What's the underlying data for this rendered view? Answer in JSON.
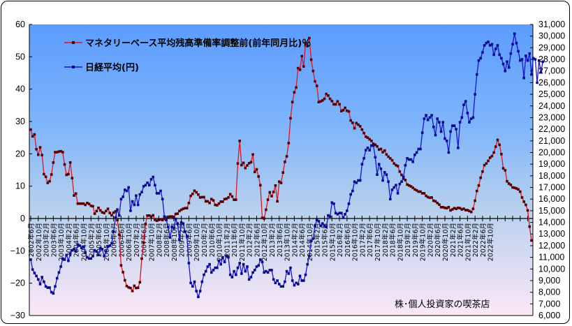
{
  "chart_data": {
    "type": "line",
    "title": "",
    "xlabel": "",
    "ylabel_left": "",
    "ylabel_right": "",
    "legend_position": "top-left inside plot",
    "grid": false,
    "credit": "株･個人投資家の喫茶店",
    "x_start": "2002年6月",
    "x_end": "2022年10月",
    "x_tick_labels": [
      "2002年6月",
      "2002年10月",
      "2003年2月",
      "2003年6月",
      "2003年10月",
      "2004年2月",
      "2004年6月",
      "2004年10月",
      "2005年2月",
      "2005年6月",
      "2005年10月",
      "2006年2月",
      "2006年6月",
      "2006年10月",
      "2007年2月",
      "2007年6月",
      "2007年10月",
      "2008年2月",
      "2008年6月",
      "2008年10月",
      "2009年2月",
      "2009年6月",
      "2009年10月",
      "2010年2月",
      "2010年6月",
      "2010年10月",
      "2011年2月",
      "2011年6月",
      "2011年10月",
      "2012年2月",
      "2012年6月",
      "2012年10月",
      "2013年2月",
      "2013年6月",
      "2013年10月",
      "2014年2月",
      "2014年6月",
      "2014年10月",
      "2015年2月",
      "2015年6月",
      "2015年10月",
      "2016年2月",
      "2016年6月",
      "2016年10月",
      "2017年2月",
      "2017年6月",
      "2017年10月",
      "2018年2月",
      "2018年6月",
      "2018年10月",
      "2019年2月",
      "2019年6月",
      "2019年10月",
      "2020年2月",
      "2020年6月",
      "2020年10月",
      "2021年2月",
      "2021年6月",
      "2021年10月",
      "2022年2月",
      "2022年6月",
      "2022年10月"
    ],
    "left_axis": {
      "min": -30,
      "max": 60,
      "step": 10,
      "ticks": [
        "60",
        "50",
        "40",
        "30",
        "20",
        "10",
        "0",
        "-10",
        "-20",
        "-30"
      ]
    },
    "right_axis": {
      "min": 6000,
      "max": 31000,
      "step": 1000,
      "ticks": [
        "31,000",
        "30,000",
        "29,000",
        "28,000",
        "27,000",
        "26,000",
        "25,000",
        "24,000",
        "23,000",
        "22,000",
        "21,000",
        "20,000",
        "19,000",
        "18,000",
        "17,000",
        "16,000",
        "15,000",
        "14,000",
        "13,000",
        "12,000",
        "11,000",
        "10,000",
        "9,000",
        "8,000",
        "7,000",
        "6,000"
      ]
    },
    "series": [
      {
        "name": "マネタリーベース平均残高準備率調整前(前年同月比)％",
        "axis": "left",
        "color": "#e0141e",
        "values": [
          27.5,
          25.4,
          26.0,
          21.4,
          19.7,
          22.0,
          19.6,
          13.7,
          12.9,
          11.0,
          11.5,
          13.6,
          17.3,
          20.5,
          20.5,
          20.7,
          20.8,
          20.5,
          16.7,
          13.5,
          13.7,
          17.3,
          12.5,
          7.1,
          7.7,
          4.6,
          4.6,
          4.6,
          4.6,
          4.2,
          4.8,
          4.5,
          3.9,
          3.8,
          1.5,
          2.3,
          3.3,
          2.5,
          1.9,
          1.7,
          2.3,
          3.0,
          1.7,
          1.0,
          1.8,
          2.2,
          -0.5,
          -5.0,
          -14.5,
          -16.6,
          -19.1,
          -20.9,
          -21.3,
          -21.5,
          -22.4,
          -20.8,
          -21.5,
          -21.4,
          -19.7,
          -12.4,
          -7.5,
          -1.7,
          0.9,
          0.9,
          0.6,
          1.0,
          -0.4,
          -0.7,
          -0.4,
          -0.3,
          -0.5,
          -0.1,
          0.0,
          0.5,
          0.6,
          0.6,
          0.5,
          1.4,
          1.5,
          2.3,
          2.7,
          3.0,
          3.2,
          3.2,
          4.8,
          7.0,
          7.6,
          8.6,
          8.1,
          7.4,
          6.5,
          6.6,
          6.6,
          5.3,
          5.3,
          4.8,
          6.0,
          5.6,
          4.2,
          4.1,
          4.6,
          5.2,
          5.2,
          6.0,
          6.1,
          6.5,
          7.5,
          6.8,
          5.8,
          5.8,
          17.0,
          24.0,
          16.5,
          17.2,
          15.6,
          16.4,
          17.1,
          17.4,
          19.8,
          14.4,
          15.2,
          13.0,
          10.3,
          0.2,
          0.0,
          2.7,
          5.8,
          8.1,
          6.9,
          8.2,
          10.2,
          5.3,
          11.4,
          11.0,
          14.2,
          17.5,
          19.2,
          23.3,
          31.0,
          36.0,
          39.0,
          40.5,
          46.5,
          46.0,
          50.2,
          47.0,
          54.1,
          53.3,
          55.8,
          49.1,
          45.6,
          42.4,
          41.0,
          36.0,
          36.2,
          36.5,
          37.0,
          38.5,
          38.0,
          37.0,
          36.3,
          35.3,
          35.3,
          36.2,
          35.3,
          33.2,
          33.5,
          34.2,
          33.3,
          33.1,
          30.3,
          29.6,
          27.9,
          29.5,
          29.0,
          28.5,
          27.5,
          26.4,
          25.3,
          25.0,
          24.5,
          24.0,
          23.1,
          22.8,
          22.3,
          21.3,
          21.5,
          20.5,
          21.0,
          19.8,
          19.1,
          18.6,
          18.0,
          17.0,
          16.5,
          16.2,
          14.5,
          13.5,
          12.3,
          11.9,
          10.5,
          10.2,
          9.9,
          9.5,
          9.0,
          8.7,
          8.3,
          8.3,
          7.8,
          7.8,
          7.0,
          6.6,
          6.4,
          6.5,
          5.5,
          5.3,
          4.8,
          4.3,
          3.5,
          3.5,
          3.3,
          3.2,
          3.5,
          2.5,
          2.8,
          3.2,
          3.0,
          3.3,
          3.2,
          2.8,
          3.0,
          2.6,
          2.6,
          2.3,
          2.0,
          3.0,
          5.5,
          8.5,
          10.2,
          12.6,
          14.5,
          16.5,
          17.0,
          17.8,
          18.8,
          19.3,
          20.4,
          22.2,
          24.3,
          22.8,
          19.9,
          15.5,
          14.9,
          11.5,
          10.8,
          10.4,
          9.6,
          9.5,
          9.3,
          9.0,
          8.3,
          6.5,
          5.2,
          4.2,
          2.5,
          -2.5,
          -6.8
        ]
      },
      {
        "name": "日経平均(円)",
        "axis": "right",
        "color": "#1414d2",
        "values": [
          10800,
          9950,
          9650,
          9400,
          9100,
          8700,
          9300,
          8900,
          8500,
          8400,
          8400,
          8000,
          7900,
          8500,
          9200,
          9700,
          10200,
          10900,
          10800,
          11200,
          10700,
          11300,
          11600,
          11700,
          11500,
          12100,
          12000,
          11800,
          11900,
          11400,
          11000,
          10900,
          10900,
          11100,
          11600,
          11500,
          11200,
          11800,
          11700,
          11100,
          11500,
          11900,
          12000,
          12200,
          13200,
          14400,
          15100,
          14600,
          16000,
          16200,
          16800,
          16700,
          17000,
          15000,
          15800,
          15500,
          16300,
          15500,
          16400,
          16600,
          17100,
          17200,
          17400,
          17200,
          17700,
          17900,
          17200,
          16500,
          16500,
          16700,
          16000,
          14500,
          14200,
          13600,
          12700,
          13600,
          13500,
          14300,
          13900,
          12500,
          14000,
          13900,
          13200,
          12800,
          10500,
          8800,
          8500,
          8900,
          8100,
          7600,
          8100,
          8900,
          9500,
          9800,
          10200,
          10400,
          9700,
          9900,
          10100,
          10100,
          10700,
          10400,
          11000,
          10600,
          11100,
          11000,
          9500,
          9300,
          9800,
          9500,
          10100,
          10500,
          9600,
          10400,
          9800,
          10200,
          9100,
          9300,
          9700,
          9900,
          10200,
          10300,
          10800,
          10600,
          9700,
          9800,
          9700,
          9900,
          9900,
          9100,
          8800,
          9000,
          8700,
          8500,
          8500,
          8900,
          9800,
          9600,
          10100,
          9000,
          8600,
          8800,
          8700,
          9400,
          9000,
          9000,
          9500,
          10400,
          11100,
          12400,
          12600,
          13700,
          14200,
          14100,
          13700,
          13900,
          13700,
          13600,
          14600,
          14500,
          15700,
          15600,
          14800,
          14700,
          14800,
          14800,
          14400,
          14700,
          15000,
          15600,
          16400,
          16700,
          17500,
          17400,
          17600,
          17600,
          19000,
          19500,
          20200,
          20400,
          20200,
          20600,
          20600,
          19600,
          18100,
          19000,
          18600,
          17600,
          18300,
          18100,
          17500,
          16000,
          16800,
          17000,
          17200,
          16500,
          17300,
          17500,
          17900,
          18900,
          19500,
          19400,
          19400,
          19200,
          19800,
          20000,
          20300,
          20300,
          21700,
          22900,
          23200,
          22800,
          23000,
          23200,
          22200,
          21500,
          22900,
          22600,
          21800,
          22600,
          21200,
          21000,
          20000,
          21800,
          22300,
          22300,
          22000,
          20400,
          22600,
          23000,
          24100,
          24400,
          23400,
          22600,
          22900,
          23000,
          25000,
          26700,
          27900,
          28100,
          28600,
          29200,
          29400,
          29500,
          29200,
          29300,
          28400,
          28900,
          29200,
          28400,
          28100,
          27600,
          27000,
          27800,
          27300,
          28500,
          29300,
          30200,
          29400,
          28700,
          27900,
          28000,
          26400,
          28300,
          27900,
          28500,
          26700,
          28100,
          28000,
          26000,
          27900,
          26900,
          27800
        ]
      }
    ]
  },
  "legend": {
    "items": [
      {
        "label": "マネタリーベース平均残高準備率調整前(前年同月比)％",
        "color": "#e0141e"
      },
      {
        "label": "日経平均(円)",
        "color": "#1414d2"
      }
    ]
  },
  "credit": "株･個人投資家の喫茶店",
  "colors": {
    "plot_top": "#5c9cff",
    "plot_mid": "#a8ccf5",
    "plot_bottom": "#fbe8f7",
    "red_line": "#e0141e",
    "blue_line": "#1414d2",
    "marker_dark": "#400000",
    "blue_marker": "#000080"
  }
}
